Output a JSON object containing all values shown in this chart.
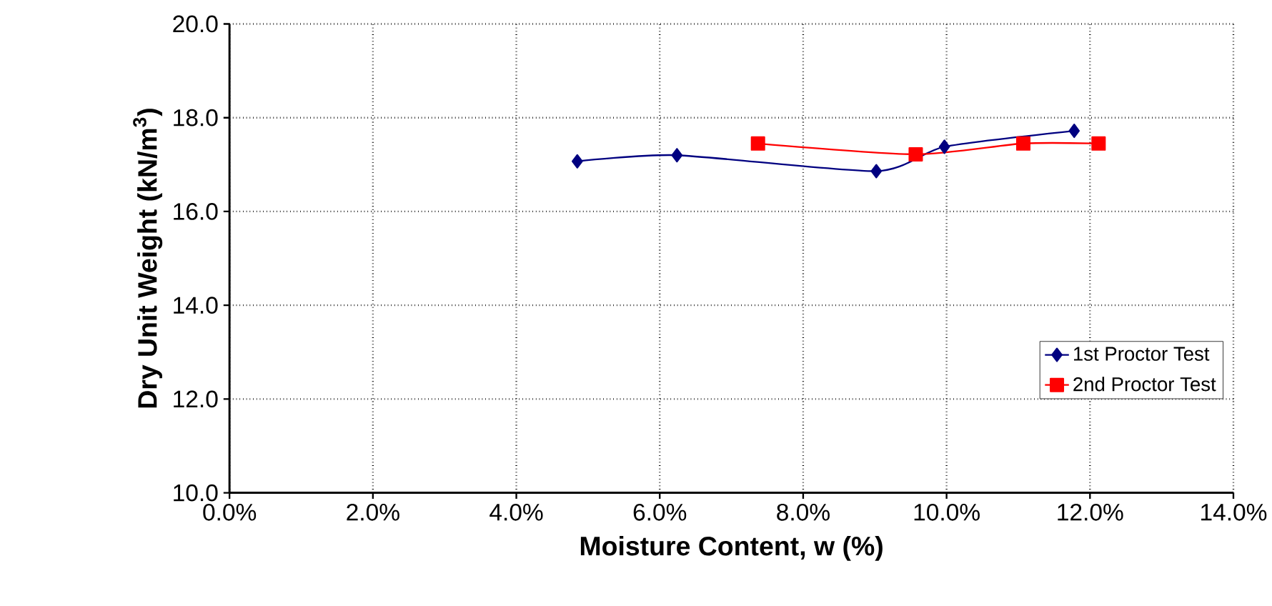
{
  "chart_data": {
    "type": "line",
    "xlabel": "Moisture Content, w (%)",
    "ylabel": "Dry Unit Weight (kN/m$^{3}$)",
    "xlim": [
      0,
      0.14
    ],
    "ylim": [
      10,
      20
    ],
    "xticks": [
      {
        "value": 0,
        "label": "0.0%"
      },
      {
        "value": 0.02,
        "label": "2.0%"
      },
      {
        "value": 0.04,
        "label": "4.0%"
      },
      {
        "value": 0.06,
        "label": "6.0%"
      },
      {
        "value": 0.08,
        "label": "8.0%"
      },
      {
        "value": 0.1,
        "label": "10.0%"
      },
      {
        "value": 0.12,
        "label": "12.0%"
      },
      {
        "value": 0.14,
        "label": "14.0%"
      }
    ],
    "yticks": [
      {
        "value": 10,
        "label": "10.0"
      },
      {
        "value": 12,
        "label": "12.0"
      },
      {
        "value": 14,
        "label": "14.0"
      },
      {
        "value": 16,
        "label": "16.0"
      },
      {
        "value": 18,
        "label": "18.0"
      },
      {
        "value": 20,
        "label": "20.0"
      }
    ],
    "grid": true,
    "legend": "right",
    "series": [
      {
        "name": "1st Proctor Test",
        "color": "#000080",
        "marker": "diamond",
        "x": [
          0.0485,
          0.0624,
          0.0902,
          0.0997,
          0.1178
        ],
        "values": [
          17.07,
          17.2,
          16.86,
          17.38,
          17.72
        ]
      },
      {
        "name": "2nd Proctor Test",
        "color": "#ff0000",
        "marker": "square",
        "x": [
          0.0737,
          0.0957,
          0.1107,
          0.1212
        ],
        "values": [
          17.45,
          17.22,
          17.45,
          17.45
        ]
      }
    ]
  }
}
